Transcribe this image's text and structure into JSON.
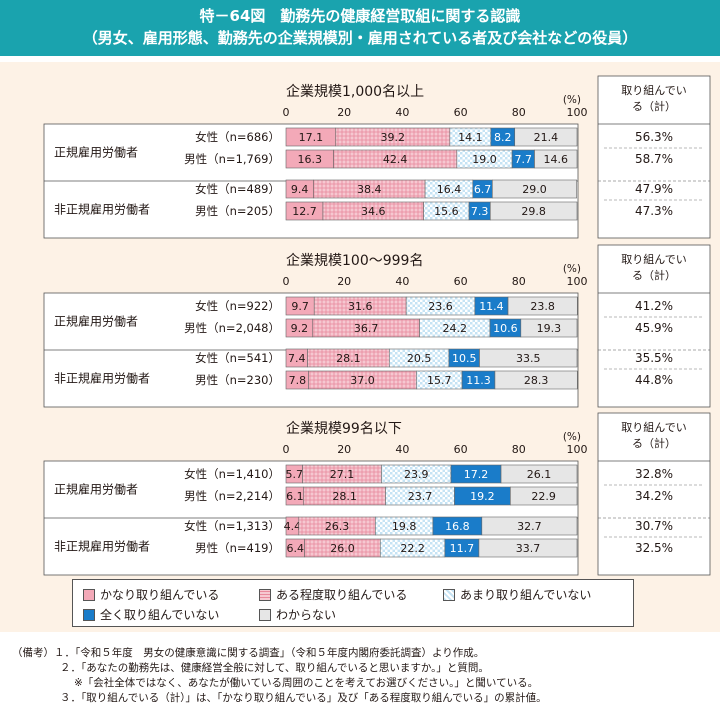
{
  "header": {
    "title": "特－64図　勤務先の健康経営取組に関する認識",
    "subtitle": "（男女、雇用形態、勤務先の企業規模別・雇用されている者及び会社などの役員）"
  },
  "colors": {
    "header_bg": "#1aa3ae",
    "panel_bg": "#fdf2e6",
    "cat1": "#f3a9b8",
    "cat2": "#f6c8d1",
    "cat3": "#c5e3f4",
    "cat4": "#1a7cc9",
    "cat5": "#e6e6e6"
  },
  "axis_ticks": [
    "0",
    "20",
    "40",
    "60",
    "80",
    "100"
  ],
  "pct_unit": "(%)",
  "total_header": "取り組んでいる（計）",
  "groups_labels": [
    "正規雇用労働者",
    "非正規雇用労働者"
  ],
  "chart_data": [
    {
      "type": "bar",
      "stacked": true,
      "orientation": "horizontal",
      "title": "企業規模1,000名以上",
      "series_names": [
        "かなり取り組んでいる",
        "ある程度取り組んでいる",
        "あまり取り組んでいない",
        "全く取り組んでいない",
        "わからない"
      ],
      "xlim": [
        0,
        100
      ],
      "rows": [
        {
          "group": "正規雇用労働者",
          "label": "女性（n=686）",
          "values": [
            17.1,
            39.2,
            14.1,
            8.2,
            21.4
          ],
          "total": "56.3%"
        },
        {
          "group": "正規雇用労働者",
          "label": "男性（n=1,769）",
          "values": [
            16.3,
            42.4,
            19.0,
            7.7,
            14.6
          ],
          "total": "58.7%"
        },
        {
          "group": "非正規雇用労働者",
          "label": "女性（n=489）",
          "values": [
            9.4,
            38.4,
            16.4,
            6.7,
            29.0
          ],
          "total": "47.9%"
        },
        {
          "group": "非正規雇用労働者",
          "label": "男性（n=205）",
          "values": [
            12.7,
            34.6,
            15.6,
            7.3,
            29.8
          ],
          "total": "47.3%"
        }
      ]
    },
    {
      "type": "bar",
      "stacked": true,
      "orientation": "horizontal",
      "title": "企業規模100～999名",
      "series_names": [
        "かなり取り組んでいる",
        "ある程度取り組んでいる",
        "あまり取り組んでいない",
        "全く取り組んでいない",
        "わからない"
      ],
      "xlim": [
        0,
        100
      ],
      "rows": [
        {
          "group": "正規雇用労働者",
          "label": "女性（n=922）",
          "values": [
            9.7,
            31.6,
            23.6,
            11.4,
            23.8
          ],
          "total": "41.2%"
        },
        {
          "group": "正規雇用労働者",
          "label": "男性（n=2,048）",
          "values": [
            9.2,
            36.7,
            24.2,
            10.6,
            19.3
          ],
          "total": "45.9%"
        },
        {
          "group": "非正規雇用労働者",
          "label": "女性（n=541）",
          "values": [
            7.4,
            28.1,
            20.5,
            10.5,
            33.5
          ],
          "total": "35.5%"
        },
        {
          "group": "非正規雇用労働者",
          "label": "男性（n=230）",
          "values": [
            7.8,
            37.0,
            15.7,
            11.3,
            28.3
          ],
          "total": "44.8%"
        }
      ]
    },
    {
      "type": "bar",
      "stacked": true,
      "orientation": "horizontal",
      "title": "企業規模99名以下",
      "series_names": [
        "かなり取り組んでいる",
        "ある程度取り組んでいる",
        "あまり取り組んでいない",
        "全く取り組んでいない",
        "わからない"
      ],
      "xlim": [
        0,
        100
      ],
      "rows": [
        {
          "group": "正規雇用労働者",
          "label": "女性（n=1,410）",
          "values": [
            5.7,
            27.1,
            23.9,
            17.2,
            26.1
          ],
          "total": "32.8%"
        },
        {
          "group": "正規雇用労働者",
          "label": "男性（n=2,214）",
          "values": [
            6.1,
            28.1,
            23.7,
            19.2,
            22.9
          ],
          "total": "34.2%"
        },
        {
          "group": "非正規雇用労働者",
          "label": "女性（n=1,313）",
          "values": [
            4.4,
            26.3,
            19.8,
            16.8,
            32.7
          ],
          "total": "30.7%"
        },
        {
          "group": "非正規雇用労働者",
          "label": "男性（n=419）",
          "values": [
            6.4,
            26.0,
            22.2,
            11.7,
            33.7
          ],
          "total": "32.5%"
        }
      ]
    }
  ],
  "legend": {
    "items": [
      "かなり取り組んでいる",
      "ある程度取り組んでいる",
      "あまり取り組んでいない",
      "全く取り組んでいない",
      "わからない"
    ]
  },
  "notes": [
    "（備考）１．「令和５年度　男女の健康意識に関する調査」（令和５年度内閣府委託調査）より作成。",
    "２．「あなたの勤務先は、健康経営全般に対して、取り組んでいると思いますか。」と質問。",
    "※「会社全体ではなく、あなたが働いている周囲のことを考えてお選びください。」と聞いている。",
    "３．「取り組んでいる（計）」は、「かなり取り組んでいる」及び「ある程度取り組んでいる」の累計値。"
  ]
}
